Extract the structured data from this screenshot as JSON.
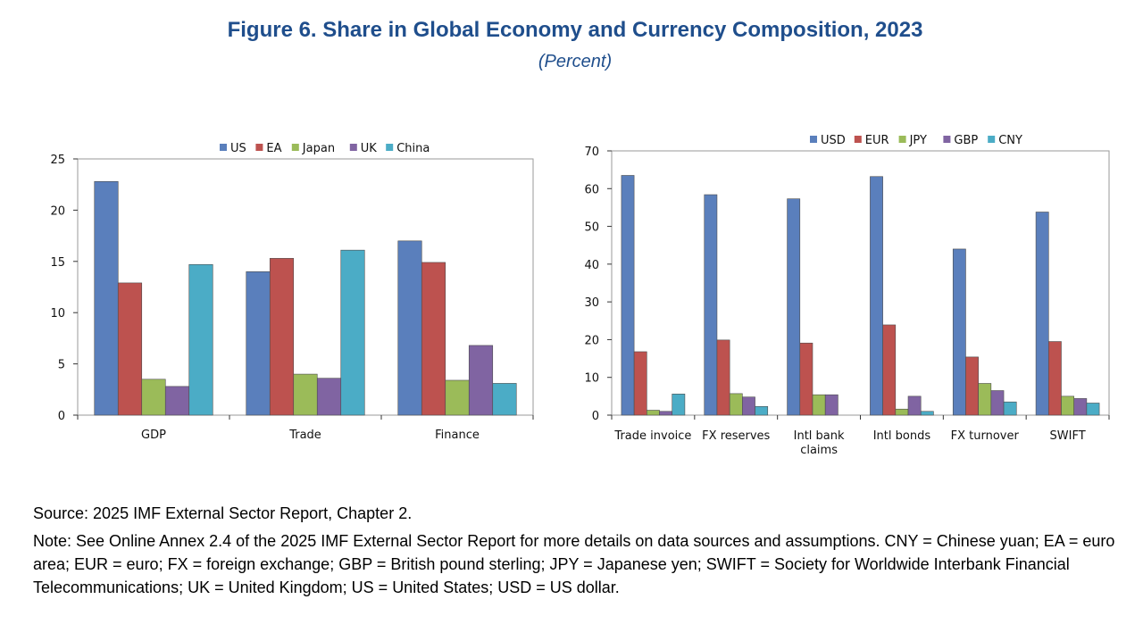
{
  "figure": {
    "title": "Figure 6. Share in Global Economy and Currency Composition, 2023",
    "subtitle": "(Percent)"
  },
  "chart_data": [
    {
      "type": "bar",
      "categories": [
        "GDP",
        "Trade",
        "Finance"
      ],
      "series": [
        {
          "name": "US",
          "color": "#5a7fbc",
          "values": [
            22.8,
            14.0,
            17.0
          ]
        },
        {
          "name": "EA",
          "color": "#bd524f",
          "values": [
            12.9,
            15.3,
            14.9
          ]
        },
        {
          "name": "Japan",
          "color": "#9bbb59",
          "values": [
            3.5,
            4.0,
            3.4
          ]
        },
        {
          "name": "UK",
          "color": "#8064a2",
          "values": [
            2.8,
            3.6,
            6.8
          ]
        },
        {
          "name": "China",
          "color": "#4bacc6",
          "values": [
            14.7,
            16.1,
            3.1
          ]
        }
      ],
      "ylim": [
        0,
        25
      ],
      "yticks": [
        0,
        5,
        10,
        15,
        20,
        25
      ],
      "legend": "top"
    },
    {
      "type": "bar",
      "categories": [
        "Trade invoice",
        "FX reserves",
        "Intl bank claims",
        "Intl bonds",
        "FX turnover",
        "SWIFT"
      ],
      "category_lines": [
        [
          "Trade invoice"
        ],
        [
          "FX reserves"
        ],
        [
          "Intl bank",
          "claims"
        ],
        [
          "Intl bonds"
        ],
        [
          "FX turnover"
        ],
        [
          "SWIFT"
        ]
      ],
      "series": [
        {
          "name": "USD",
          "color": "#5a7fbc",
          "values": [
            63.5,
            58.4,
            57.3,
            63.2,
            44.0,
            53.8
          ]
        },
        {
          "name": "EUR",
          "color": "#bd524f",
          "values": [
            16.8,
            19.9,
            19.1,
            23.9,
            15.4,
            19.5
          ]
        },
        {
          "name": "JPY",
          "color": "#9bbb59",
          "values": [
            1.3,
            5.7,
            5.4,
            1.6,
            8.4,
            5.0
          ]
        },
        {
          "name": "GBP",
          "color": "#8064a2",
          "values": [
            1.0,
            4.8,
            5.4,
            5.0,
            6.5,
            4.4
          ]
        },
        {
          "name": "CNY",
          "color": "#4bacc6",
          "values": [
            5.6,
            2.3,
            0.0,
            1.0,
            3.5,
            3.2
          ]
        }
      ],
      "ylim": [
        0,
        70
      ],
      "yticks": [
        0,
        10,
        20,
        30,
        40,
        50,
        60,
        70
      ],
      "legend": "top"
    }
  ],
  "footer": {
    "source": "Source: 2025 IMF External Sector Report, Chapter 2.",
    "note": "Note: See Online Annex 2.4 of the 2025 IMF External Sector Report for more details on data sources and assumptions. CNY = Chinese yuan; EA = euro area; EUR = euro; FX = foreign exchange; GBP = British pound sterling; JPY = Japanese yen; SWIFT = Society for Worldwide Interbank Financial Telecommunications; UK = United Kingdom; US = United States; USD = US dollar."
  }
}
